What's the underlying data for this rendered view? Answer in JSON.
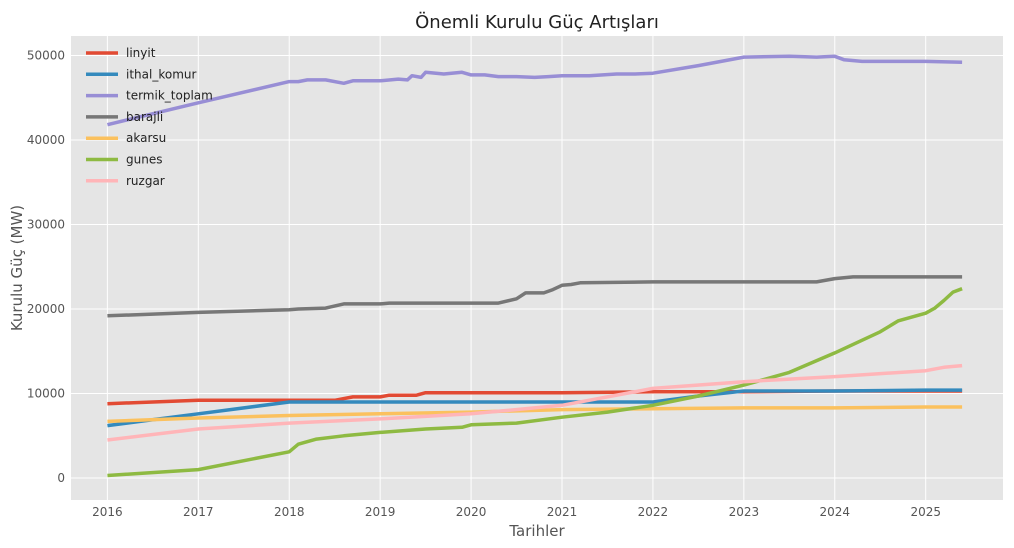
{
  "chart_data": {
    "type": "line",
    "title": "Önemli Kurulu Güç Artışları",
    "xlabel": "Tarihler",
    "ylabel": "Kurulu Güç (MW)",
    "xlim": [
      2015.6,
      2025.85
    ],
    "ylim": [
      -2600,
      52300
    ],
    "x_ticks": [
      2016,
      2017,
      2018,
      2019,
      2020,
      2021,
      2022,
      2023,
      2024,
      2025
    ],
    "y_ticks": [
      0,
      10000,
      20000,
      30000,
      40000,
      50000
    ],
    "grid": true,
    "legend_position": "top-left",
    "series": [
      {
        "name": "linyit",
        "color": "#E24A33",
        "points": [
          [
            2016,
            8800
          ],
          [
            2017,
            9200
          ],
          [
            2018,
            9200
          ],
          [
            2018.5,
            9200
          ],
          [
            2018.7,
            9600
          ],
          [
            2019,
            9600
          ],
          [
            2019.1,
            9800
          ],
          [
            2019.4,
            9800
          ],
          [
            2019.5,
            10100
          ],
          [
            2021,
            10100
          ],
          [
            2022,
            10200
          ],
          [
            2023,
            10200
          ],
          [
            2024,
            10300
          ],
          [
            2025.4,
            10300
          ]
        ]
      },
      {
        "name": "ithal_komur",
        "color": "#348ABD",
        "points": [
          [
            2016,
            6200
          ],
          [
            2017,
            7600
          ],
          [
            2018,
            9000
          ],
          [
            2019,
            9000
          ],
          [
            2020,
            9000
          ],
          [
            2021,
            9000
          ],
          [
            2022,
            9000
          ],
          [
            2022.5,
            9700
          ],
          [
            2023,
            10300
          ],
          [
            2024,
            10300
          ],
          [
            2025,
            10400
          ],
          [
            2025.4,
            10400
          ]
        ]
      },
      {
        "name": "termik_toplam",
        "color": "#988ED5",
        "points": [
          [
            2016,
            41800
          ],
          [
            2017,
            44400
          ],
          [
            2018,
            46900
          ],
          [
            2018.1,
            46900
          ],
          [
            2018.2,
            47100
          ],
          [
            2018.4,
            47100
          ],
          [
            2018.6,
            46700
          ],
          [
            2018.7,
            47000
          ],
          [
            2019,
            47000
          ],
          [
            2019.2,
            47200
          ],
          [
            2019.3,
            47100
          ],
          [
            2019.35,
            47600
          ],
          [
            2019.45,
            47400
          ],
          [
            2019.5,
            48000
          ],
          [
            2019.7,
            47800
          ],
          [
            2019.9,
            48000
          ],
          [
            2020,
            47700
          ],
          [
            2020.15,
            47700
          ],
          [
            2020.3,
            47500
          ],
          [
            2020.5,
            47500
          ],
          [
            2020.7,
            47400
          ],
          [
            2020.85,
            47500
          ],
          [
            2021,
            47600
          ],
          [
            2021.3,
            47600
          ],
          [
            2021.6,
            47800
          ],
          [
            2021.8,
            47800
          ],
          [
            2022,
            47900
          ],
          [
            2022.5,
            48800
          ],
          [
            2023,
            49800
          ],
          [
            2023.5,
            49900
          ],
          [
            2023.8,
            49800
          ],
          [
            2024,
            49900
          ],
          [
            2024.1,
            49500
          ],
          [
            2024.3,
            49300
          ],
          [
            2024.6,
            49300
          ],
          [
            2025,
            49300
          ],
          [
            2025.4,
            49200
          ]
        ]
      },
      {
        "name": "barajli",
        "color": "#777777",
        "points": [
          [
            2016,
            19200
          ],
          [
            2017,
            19600
          ],
          [
            2018,
            19900
          ],
          [
            2018.1,
            20000
          ],
          [
            2018.4,
            20100
          ],
          [
            2018.6,
            20600
          ],
          [
            2019,
            20600
          ],
          [
            2019.1,
            20700
          ],
          [
            2020,
            20700
          ],
          [
            2020.3,
            20700
          ],
          [
            2020.5,
            21200
          ],
          [
            2020.6,
            21900
          ],
          [
            2020.8,
            21900
          ],
          [
            2020.9,
            22300
          ],
          [
            2021,
            22800
          ],
          [
            2021.1,
            22900
          ],
          [
            2021.2,
            23100
          ],
          [
            2022,
            23200
          ],
          [
            2023,
            23200
          ],
          [
            2023.8,
            23200
          ],
          [
            2024,
            23600
          ],
          [
            2024.2,
            23800
          ],
          [
            2025,
            23800
          ],
          [
            2025.4,
            23800
          ]
        ]
      },
      {
        "name": "akarsu",
        "color": "#FBC15E",
        "points": [
          [
            2016,
            6700
          ],
          [
            2017,
            7100
          ],
          [
            2018,
            7400
          ],
          [
            2019,
            7600
          ],
          [
            2020,
            7800
          ],
          [
            2021,
            8100
          ],
          [
            2022,
            8200
          ],
          [
            2023,
            8300
          ],
          [
            2024,
            8300
          ],
          [
            2025,
            8400
          ],
          [
            2025.4,
            8400
          ]
        ]
      },
      {
        "name": "gunes",
        "color": "#8EBA42",
        "points": [
          [
            2016,
            300
          ],
          [
            2017,
            1000
          ],
          [
            2018,
            3100
          ],
          [
            2018.1,
            4000
          ],
          [
            2018.3,
            4600
          ],
          [
            2018.6,
            5000
          ],
          [
            2019,
            5400
          ],
          [
            2019.5,
            5800
          ],
          [
            2019.9,
            6000
          ],
          [
            2020,
            6300
          ],
          [
            2020.5,
            6500
          ],
          [
            2021,
            7200
          ],
          [
            2021.5,
            7800
          ],
          [
            2022,
            8600
          ],
          [
            2022.5,
            9700
          ],
          [
            2023,
            11000
          ],
          [
            2023.5,
            12500
          ],
          [
            2024,
            14800
          ],
          [
            2024.5,
            17300
          ],
          [
            2024.7,
            18600
          ],
          [
            2025,
            19500
          ],
          [
            2025.1,
            20100
          ],
          [
            2025.2,
            21000
          ],
          [
            2025.3,
            22000
          ],
          [
            2025.4,
            22400
          ]
        ]
      },
      {
        "name": "ruzgar",
        "color": "#FFB5B8",
        "points": [
          [
            2016,
            4500
          ],
          [
            2017,
            5800
          ],
          [
            2018,
            6500
          ],
          [
            2019,
            7000
          ],
          [
            2020,
            7600
          ],
          [
            2021,
            8600
          ],
          [
            2022,
            10600
          ],
          [
            2023,
            11400
          ],
          [
            2024,
            12000
          ],
          [
            2025,
            12700
          ],
          [
            2025.2,
            13100
          ],
          [
            2025.4,
            13300
          ]
        ]
      }
    ]
  }
}
